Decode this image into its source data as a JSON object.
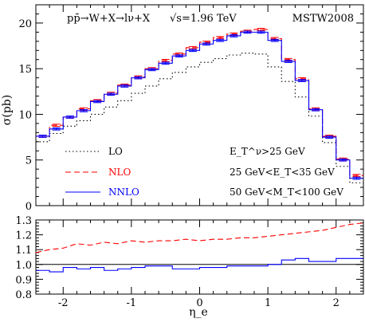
{
  "chart_data": [
    {
      "type": "line",
      "panel": "main",
      "top_left_annotation": "pp̄→W+X→lν+X",
      "top_center_annotation": "√s=1.96 TeV",
      "top_right_annotation": "MSTW2008",
      "xlabel": "η_e",
      "ylabel": "σ(pb)",
      "xlim": [
        -2.4,
        2.4
      ],
      "ylim": [
        0,
        22
      ],
      "xticks": [
        -2,
        -1,
        0,
        1,
        2
      ],
      "yticks": [
        0,
        5,
        10,
        15,
        20
      ],
      "x_edges": [
        -2.4,
        -2.2,
        -2.0,
        -1.8,
        -1.6,
        -1.4,
        -1.2,
        -1.0,
        -0.8,
        -0.6,
        -0.4,
        -0.2,
        0.0,
        0.2,
        0.4,
        0.6,
        0.8,
        1.0,
        1.2,
        1.4,
        1.6,
        1.8,
        2.0,
        2.2,
        2.4
      ],
      "series": [
        {
          "name": "LO",
          "style": "dotted",
          "color": "#000000",
          "values": [
            7.0,
            7.9,
            8.7,
            9.3,
            10.0,
            10.8,
            11.5,
            12.3,
            13.1,
            13.9,
            14.6,
            15.2,
            15.7,
            16.1,
            16.5,
            16.7,
            16.6,
            15.2,
            13.6,
            11.9,
            9.8,
            6.9,
            4.3,
            2.5
          ]
        },
        {
          "name": "NLO",
          "style": "dashed",
          "color": "#ff0000",
          "values": [
            7.6,
            8.8,
            9.7,
            10.6,
            11.5,
            12.3,
            13.2,
            14.1,
            15.0,
            15.9,
            16.6,
            17.3,
            17.9,
            18.4,
            18.8,
            19.1,
            19.3,
            18.3,
            16.0,
            13.9,
            10.6,
            7.6,
            5.1,
            3.3
          ]
        },
        {
          "name": "NNLO",
          "style": "solid",
          "color": "#0000ff",
          "values": [
            7.6,
            8.4,
            9.7,
            10.4,
            11.4,
            12.2,
            13.1,
            14.0,
            14.9,
            15.6,
            16.4,
            17.0,
            17.7,
            18.1,
            18.6,
            19.0,
            19.0,
            18.1,
            15.8,
            13.7,
            10.5,
            7.5,
            5.0,
            3.0
          ]
        }
      ],
      "legend": [
        "LO",
        "NLO",
        "NNLO"
      ],
      "cuts": [
        "E_T^ν>25 GeV",
        "25 GeV<E_T<35 GeV",
        "50 GeV<M_T<100 GeV"
      ]
    },
    {
      "type": "line",
      "panel": "ratio",
      "xlabel": "η_e",
      "xlim": [
        -2.4,
        2.4
      ],
      "ylim": [
        0.8,
        1.3
      ],
      "yticks": [
        0.8,
        0.9,
        1.0,
        1.1,
        1.2,
        1.3
      ],
      "reference_line": 1.0,
      "series": [
        {
          "name": "NLO",
          "style": "dashed",
          "color": "#ff0000",
          "x": [
            -2.4,
            -2.2,
            -2.0,
            -1.8,
            -1.6,
            -1.4,
            -1.2,
            -1.0,
            -0.8,
            -0.6,
            -0.4,
            -0.2,
            0.0,
            0.2,
            0.4,
            0.6,
            0.8,
            1.0,
            1.2,
            1.4,
            1.6,
            1.8,
            2.0,
            2.2,
            2.4
          ],
          "values": [
            1.08,
            1.1,
            1.11,
            1.14,
            1.13,
            1.15,
            1.14,
            1.16,
            1.15,
            1.16,
            1.16,
            1.17,
            1.16,
            1.17,
            1.17,
            1.18,
            1.18,
            1.19,
            1.2,
            1.21,
            1.22,
            1.23,
            1.25,
            1.27,
            1.28
          ]
        },
        {
          "name": "NNLO",
          "style": "solid",
          "color": "#0000ff",
          "values": [
            0.96,
            0.95,
            0.98,
            0.97,
            0.98,
            0.96,
            0.97,
            0.98,
            0.99,
            0.99,
            0.97,
            0.97,
            0.98,
            0.98,
            0.99,
            0.99,
            0.99,
            1.0,
            1.03,
            1.04,
            1.02,
            1.02,
            1.04,
            1.04
          ]
        }
      ]
    }
  ]
}
